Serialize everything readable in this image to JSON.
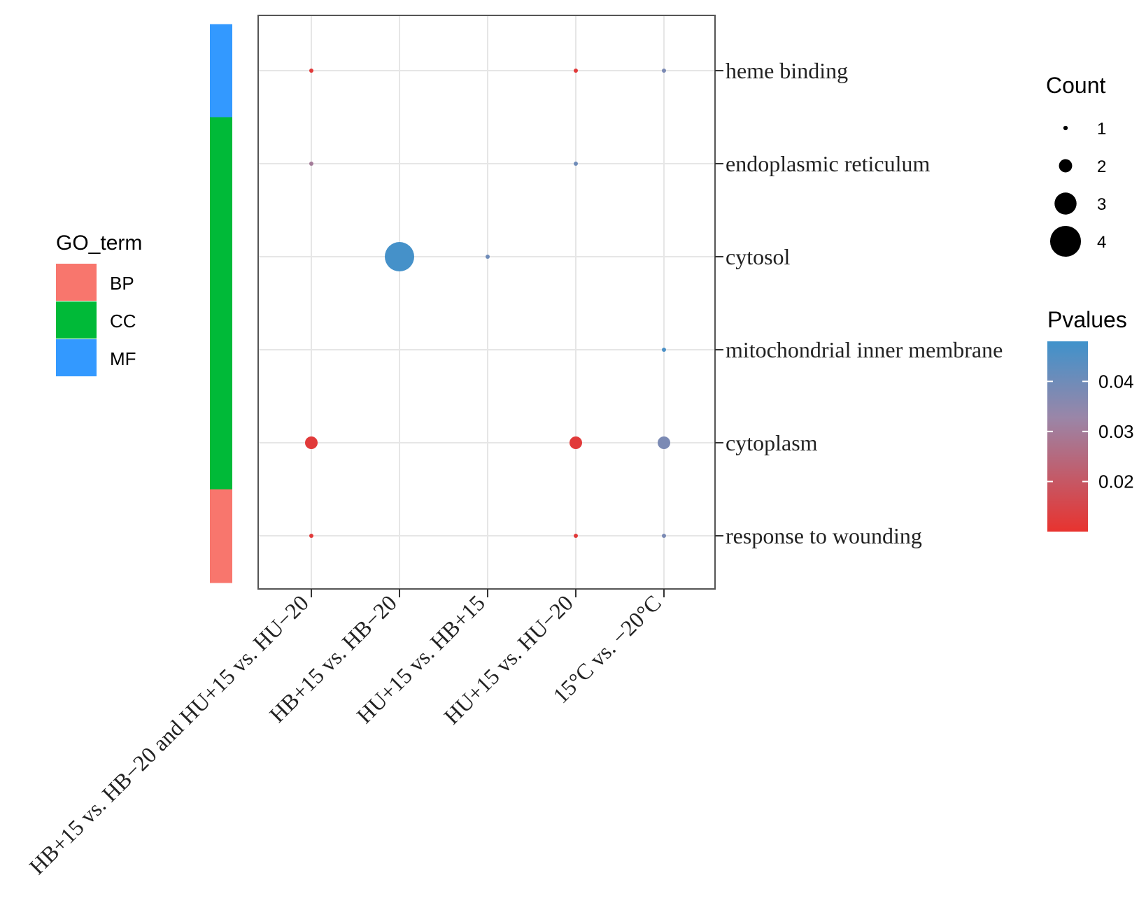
{
  "chart_data": {
    "type": "scatter",
    "title": "",
    "xlabel": "",
    "ylabel": "",
    "x_categories": [
      "HB+15 vs. HB−20 and HU+15 vs. HU−20",
      "HB+15 vs. HB−20",
      "HU+15 vs. HB+15",
      "HU+15 vs. HU−20",
      "15°C vs. −20°C"
    ],
    "y_categories": [
      "heme binding",
      "endoplasmic reticulum",
      "cytosol",
      "mitochondrial inner membrane",
      "cytoplasm",
      "response to wounding"
    ],
    "go_term_per_row": [
      "MF",
      "CC",
      "CC",
      "CC",
      "CC",
      "BP"
    ],
    "points": [
      {
        "x": "HB+15 vs. HB−20 and HU+15 vs. HU−20",
        "y": "heme binding",
        "count": 1,
        "pvalue": 0.012
      },
      {
        "x": "HU+15 vs. HU−20",
        "y": "heme binding",
        "count": 1,
        "pvalue": 0.012
      },
      {
        "x": "15°C vs. −20°C",
        "y": "heme binding",
        "count": 1,
        "pvalue": 0.038
      },
      {
        "x": "HB+15 vs. HB−20 and HU+15 vs. HU−20",
        "y": "endoplasmic reticulum",
        "count": 1,
        "pvalue": 0.03
      },
      {
        "x": "HU+15 vs. HU−20",
        "y": "endoplasmic reticulum",
        "count": 1,
        "pvalue": 0.04
      },
      {
        "x": "HB+15 vs. HB−20",
        "y": "cytosol",
        "count": 4,
        "pvalue": 0.047
      },
      {
        "x": "HU+15 vs. HB+15",
        "y": "cytosol",
        "count": 1,
        "pvalue": 0.04
      },
      {
        "x": "15°C vs. −20°C",
        "y": "mitochondrial inner membrane",
        "count": 1,
        "pvalue": 0.046
      },
      {
        "x": "HB+15 vs. HB−20 and HU+15 vs. HU−20",
        "y": "cytoplasm",
        "count": 2,
        "pvalue": 0.012
      },
      {
        "x": "HU+15 vs. HU−20",
        "y": "cytoplasm",
        "count": 2,
        "pvalue": 0.012
      },
      {
        "x": "15°C vs. −20°C",
        "y": "cytoplasm",
        "count": 2,
        "pvalue": 0.038
      },
      {
        "x": "HB+15 vs. HB−20 and HU+15 vs. HU−20",
        "y": "response to wounding",
        "count": 1,
        "pvalue": 0.012
      },
      {
        "x": "HU+15 vs. HU−20",
        "y": "response to wounding",
        "count": 1,
        "pvalue": 0.012
      },
      {
        "x": "15°C vs. −20°C",
        "y": "response to wounding",
        "count": 1,
        "pvalue": 0.038
      }
    ],
    "grid": true,
    "legends": {
      "go_term": {
        "title": "GO_term",
        "entries": [
          {
            "label": "BP",
            "color": "#F8766D"
          },
          {
            "label": "CC",
            "color": "#00BA38"
          },
          {
            "label": "MF",
            "color": "#3399FF"
          }
        ]
      },
      "count": {
        "title": "Count",
        "entries": [
          1,
          2,
          3,
          4
        ]
      },
      "pvalues": {
        "title": "Pvalues",
        "range": [
          0.01,
          0.048
        ],
        "ticks": [
          0.04,
          0.03,
          0.02
        ],
        "tick_labels": [
          "0.04",
          "0.03",
          "0.02"
        ],
        "color_low": "#E8332F",
        "color_mid": "#9A86A8",
        "color_high": "#3F92CB"
      }
    }
  }
}
